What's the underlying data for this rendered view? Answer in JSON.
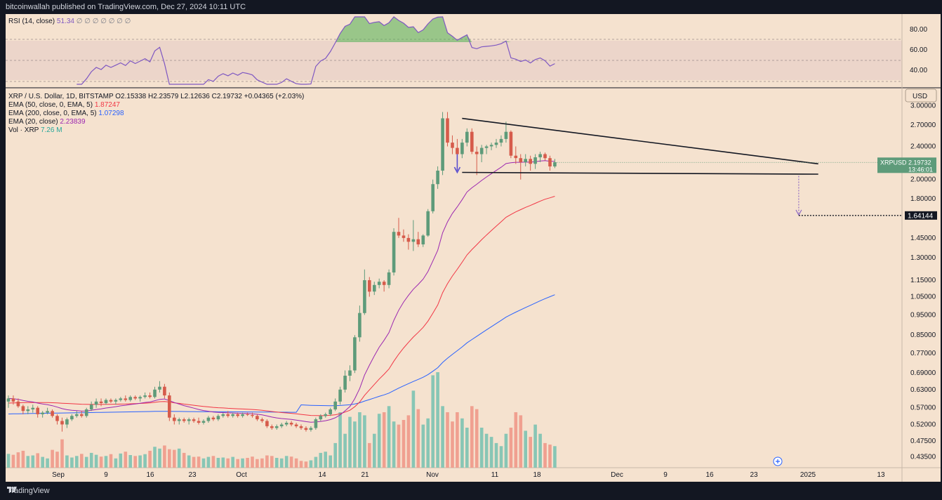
{
  "header": {
    "text": "bitcoinwallah published on TradingView.com, Dec 27, 2024 10:11 UTC"
  },
  "footer": {
    "brand": "TradingView"
  },
  "rsi": {
    "legend_label": "RSI (14, close)",
    "value": "51.34",
    "placeholders": "∅ ∅ ∅ ∅ ∅ ∅ ∅",
    "ticks": [
      "80.00",
      "60.00",
      "40.00"
    ]
  },
  "main": {
    "symbol_line": "XRP / U.S. Dollar, 1D, BITSTAMP",
    "ohlc": {
      "o": "O2.15338",
      "h": "H2.23579",
      "l": "L2.12636",
      "c": "C2.19732",
      "chg": "+0.04365 (+2.03%)"
    },
    "currency_label": "USD",
    "indicators": [
      {
        "label": "EMA (50, close, 0, EMA, 5)",
        "value": "1.87247",
        "color": "#f23645"
      },
      {
        "label": "EMA (200, close, 0, EMA, 5)",
        "value": "1.07298",
        "color": "#2962ff"
      },
      {
        "label": "EMA (20, close)",
        "value": "2.23839",
        "color": "#9c27b0"
      },
      {
        "label": "Vol · XRP",
        "value": "7.26 M",
        "color": "#26a69a"
      }
    ],
    "price_ticks": [
      "3.00000",
      "2.70000",
      "2.40000",
      "2.00000",
      "1.80000",
      "1.45000",
      "1.30000",
      "1.15000",
      "1.05000",
      "0.95000",
      "0.85000",
      "0.77000",
      "0.69000",
      "0.63000",
      "0.57000",
      "0.52000",
      "0.47500",
      "0.43500"
    ],
    "price_tag": {
      "symbol": "XRPUSD",
      "price": "2.19732",
      "countdown": "13:46:01"
    },
    "target_tag": "1.64144",
    "x_ticks": [
      "Sep",
      "9",
      "16",
      "23",
      "Oct",
      "14",
      "21",
      "Nov",
      "11",
      "18",
      "Dec",
      "9",
      "16",
      "23",
      "2025",
      "13"
    ]
  },
  "colors": {
    "up": "#5e9b7a",
    "down": "#d65b4b",
    "vol_up": "#88c6b5",
    "vol_down": "#f0a090",
    "rsi_line": "#7e57c2",
    "background": "#f5e2cf"
  },
  "chart_data": {
    "type": "candlestick",
    "title": "XRP / U.S. Dollar, 1D, BITSTAMP",
    "ylabel": "USD",
    "y_scale": "log",
    "ylim": [
      0.41,
      3.3
    ],
    "start_date": "2024-08-28",
    "ohlc": [
      [
        0.59,
        0.61,
        0.57,
        0.6
      ],
      [
        0.6,
        0.61,
        0.58,
        0.59
      ],
      [
        0.59,
        0.6,
        0.57,
        0.575
      ],
      [
        0.575,
        0.58,
        0.55,
        0.56
      ],
      [
        0.56,
        0.575,
        0.55,
        0.565
      ],
      [
        0.565,
        0.58,
        0.555,
        0.57
      ],
      [
        0.57,
        0.575,
        0.54,
        0.55
      ],
      [
        0.55,
        0.56,
        0.54,
        0.555
      ],
      [
        0.555,
        0.57,
        0.55,
        0.56
      ],
      [
        0.56,
        0.565,
        0.54,
        0.545
      ],
      [
        0.545,
        0.55,
        0.52,
        0.53
      ],
      [
        0.53,
        0.54,
        0.5,
        0.52
      ],
      [
        0.52,
        0.54,
        0.51,
        0.535
      ],
      [
        0.535,
        0.55,
        0.53,
        0.545
      ],
      [
        0.545,
        0.56,
        0.54,
        0.55
      ],
      [
        0.55,
        0.56,
        0.54,
        0.545
      ],
      [
        0.545,
        0.57,
        0.54,
        0.565
      ],
      [
        0.565,
        0.59,
        0.56,
        0.58
      ],
      [
        0.58,
        0.6,
        0.57,
        0.59
      ],
      [
        0.59,
        0.6,
        0.575,
        0.585
      ],
      [
        0.585,
        0.6,
        0.58,
        0.595
      ],
      [
        0.595,
        0.6,
        0.585,
        0.59
      ],
      [
        0.59,
        0.6,
        0.58,
        0.595
      ],
      [
        0.595,
        0.605,
        0.59,
        0.6
      ],
      [
        0.6,
        0.61,
        0.59,
        0.595
      ],
      [
        0.595,
        0.61,
        0.59,
        0.605
      ],
      [
        0.605,
        0.61,
        0.595,
        0.6
      ],
      [
        0.6,
        0.61,
        0.59,
        0.605
      ],
      [
        0.605,
        0.62,
        0.6,
        0.61
      ],
      [
        0.61,
        0.62,
        0.6,
        0.605
      ],
      [
        0.605,
        0.64,
        0.6,
        0.63
      ],
      [
        0.63,
        0.66,
        0.62,
        0.64
      ],
      [
        0.64,
        0.65,
        0.6,
        0.61
      ],
      [
        0.61,
        0.62,
        0.53,
        0.54
      ],
      [
        0.54,
        0.55,
        0.52,
        0.53
      ],
      [
        0.53,
        0.54,
        0.52,
        0.535
      ],
      [
        0.535,
        0.54,
        0.525,
        0.53
      ],
      [
        0.53,
        0.54,
        0.52,
        0.535
      ],
      [
        0.535,
        0.54,
        0.525,
        0.53
      ],
      [
        0.53,
        0.54,
        0.52,
        0.525
      ],
      [
        0.525,
        0.535,
        0.52,
        0.53
      ],
      [
        0.53,
        0.545,
        0.525,
        0.54
      ],
      [
        0.54,
        0.545,
        0.53,
        0.535
      ],
      [
        0.535,
        0.55,
        0.53,
        0.545
      ],
      [
        0.545,
        0.555,
        0.54,
        0.55
      ],
      [
        0.55,
        0.56,
        0.54,
        0.545
      ],
      [
        0.545,
        0.555,
        0.54,
        0.55
      ],
      [
        0.55,
        0.555,
        0.54,
        0.545
      ],
      [
        0.545,
        0.555,
        0.54,
        0.55
      ],
      [
        0.55,
        0.555,
        0.545,
        0.548
      ],
      [
        0.548,
        0.555,
        0.54,
        0.545
      ],
      [
        0.545,
        0.55,
        0.53,
        0.535
      ],
      [
        0.535,
        0.54,
        0.525,
        0.53
      ],
      [
        0.53,
        0.535,
        0.51,
        0.515
      ],
      [
        0.515,
        0.52,
        0.505,
        0.51
      ],
      [
        0.51,
        0.52,
        0.505,
        0.515
      ],
      [
        0.515,
        0.525,
        0.51,
        0.52
      ],
      [
        0.52,
        0.53,
        0.515,
        0.525
      ],
      [
        0.525,
        0.53,
        0.515,
        0.52
      ],
      [
        0.52,
        0.525,
        0.51,
        0.515
      ],
      [
        0.515,
        0.52,
        0.505,
        0.51
      ],
      [
        0.51,
        0.515,
        0.5,
        0.505
      ],
      [
        0.505,
        0.515,
        0.5,
        0.51
      ],
      [
        0.51,
        0.54,
        0.505,
        0.535
      ],
      [
        0.535,
        0.55,
        0.53,
        0.545
      ],
      [
        0.545,
        0.555,
        0.54,
        0.55
      ],
      [
        0.55,
        0.57,
        0.545,
        0.565
      ],
      [
        0.565,
        0.6,
        0.56,
        0.59
      ],
      [
        0.59,
        0.64,
        0.58,
        0.63
      ],
      [
        0.63,
        0.7,
        0.62,
        0.68
      ],
      [
        0.68,
        0.72,
        0.66,
        0.7
      ],
      [
        0.7,
        0.85,
        0.69,
        0.84
      ],
      [
        0.84,
        1.0,
        0.82,
        0.96
      ],
      [
        0.96,
        1.22,
        0.95,
        1.15
      ],
      [
        1.15,
        1.17,
        1.05,
        1.08
      ],
      [
        1.08,
        1.14,
        1.06,
        1.12
      ],
      [
        1.12,
        1.16,
        1.1,
        1.14
      ],
      [
        1.14,
        1.15,
        1.08,
        1.12
      ],
      [
        1.12,
        1.22,
        1.1,
        1.2
      ],
      [
        1.2,
        1.53,
        1.18,
        1.5
      ],
      [
        1.5,
        1.62,
        1.45,
        1.47
      ],
      [
        1.47,
        1.52,
        1.42,
        1.45
      ],
      [
        1.45,
        1.48,
        1.36,
        1.42
      ],
      [
        1.42,
        1.6,
        1.35,
        1.44
      ],
      [
        1.44,
        1.5,
        1.38,
        1.4
      ],
      [
        1.4,
        1.48,
        1.38,
        1.47
      ],
      [
        1.47,
        1.7,
        1.46,
        1.68
      ],
      [
        1.68,
        2.0,
        1.66,
        1.95
      ],
      [
        1.95,
        2.15,
        1.9,
        2.1
      ],
      [
        2.1,
        2.9,
        2.05,
        2.8
      ],
      [
        2.8,
        2.9,
        2.4,
        2.45
      ],
      [
        2.45,
        2.55,
        2.3,
        2.38
      ],
      [
        2.38,
        2.5,
        2.2,
        2.3
      ],
      [
        2.3,
        2.5,
        2.25,
        2.45
      ],
      [
        2.45,
        2.65,
        2.4,
        2.6
      ],
      [
        2.6,
        2.65,
        2.3,
        2.33
      ],
      [
        2.33,
        2.4,
        2.05,
        2.3
      ],
      [
        2.3,
        2.42,
        2.2,
        2.38
      ],
      [
        2.38,
        2.42,
        2.3,
        2.4
      ],
      [
        2.4,
        2.45,
        2.35,
        2.42
      ],
      [
        2.42,
        2.5,
        2.38,
        2.45
      ],
      [
        2.45,
        2.55,
        2.4,
        2.5
      ],
      [
        2.5,
        2.75,
        2.45,
        2.6
      ],
      [
        2.6,
        2.62,
        2.25,
        2.28
      ],
      [
        2.28,
        2.4,
        2.18,
        2.25
      ],
      [
        2.25,
        2.3,
        2.0,
        2.2
      ],
      [
        2.2,
        2.3,
        2.15,
        2.24
      ],
      [
        2.24,
        2.28,
        2.1,
        2.18
      ],
      [
        2.18,
        2.3,
        2.12,
        2.26
      ],
      [
        2.26,
        2.33,
        2.2,
        2.3
      ],
      [
        2.3,
        2.32,
        2.22,
        2.25
      ],
      [
        2.25,
        2.28,
        2.1,
        2.15
      ],
      [
        2.15,
        2.24,
        2.13,
        2.2
      ]
    ],
    "volume": [
      45,
      42,
      50,
      55,
      38,
      40,
      47,
      35,
      30,
      58,
      52,
      92,
      40,
      33,
      38,
      45,
      35,
      48,
      42,
      36,
      38,
      44,
      30,
      46,
      52,
      41,
      38,
      40,
      44,
      55,
      68,
      62,
      72,
      60,
      58,
      62,
      48,
      40,
      35,
      36,
      30,
      35,
      38,
      32,
      33,
      30,
      35,
      28,
      30,
      32,
      36,
      28,
      30,
      40,
      38,
      32,
      30,
      38,
      36,
      30,
      22,
      20,
      24,
      35,
      48,
      52,
      40,
      80,
      180,
      110,
      165,
      150,
      180,
      170,
      80,
      110,
      175,
      180,
      200,
      150,
      140,
      155,
      170,
      250,
      190,
      140,
      160,
      300,
      310,
      200,
      180,
      150,
      180,
      160,
      130,
      200,
      190,
      130,
      110,
      100,
      80,
      70,
      110,
      130,
      180,
      170,
      120,
      100,
      140,
      110,
      80,
      75,
      70
    ]
  }
}
